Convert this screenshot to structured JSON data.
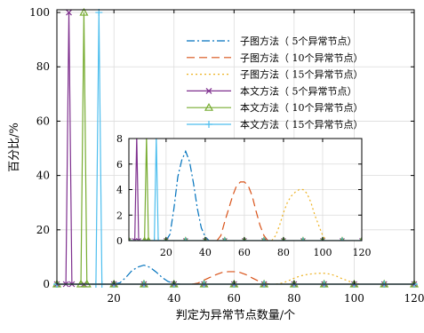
{
  "chart_data": {
    "type": "line",
    "xlabel": "判定为异常节点数量/个",
    "ylabel": "百分比/%",
    "xlim": [
      1,
      120
    ],
    "ylim": [
      0,
      101
    ],
    "xticks": [
      20,
      40,
      60,
      80,
      100,
      120
    ],
    "yticks": [
      0,
      20,
      40,
      60,
      80,
      100
    ],
    "grid": true,
    "legend_position": "top-right",
    "series": [
      {
        "name": "子图方法（  5个异常节点）",
        "color": "#0072BD",
        "dash": "9,3,2,3",
        "marker": "none",
        "points": [
          [
            20,
            0
          ],
          [
            22,
            0.5
          ],
          [
            24,
            2.5
          ],
          [
            26,
            5
          ],
          [
            28,
            6.3
          ],
          [
            30,
            7
          ],
          [
            32,
            6.2
          ],
          [
            34,
            4.5
          ],
          [
            36,
            2.5
          ],
          [
            38,
            1
          ],
          [
            40,
            0.3
          ],
          [
            42,
            0
          ]
        ]
      },
      {
        "name": "子图方法（  10个异常节点）",
        "color": "#D95319",
        "dash": "9,5",
        "marker": "none",
        "points": [
          [
            46,
            0
          ],
          [
            48,
            0.4
          ],
          [
            50,
            1.5
          ],
          [
            52,
            2.5
          ],
          [
            54,
            3.5
          ],
          [
            56,
            4.3
          ],
          [
            58,
            4.6
          ],
          [
            60,
            4.6
          ],
          [
            62,
            4.3
          ],
          [
            64,
            3.5
          ],
          [
            66,
            2.3
          ],
          [
            68,
            1.2
          ],
          [
            70,
            0.4
          ],
          [
            72,
            0
          ]
        ]
      },
      {
        "name": "子图方法（  15个异常节点）",
        "color": "#EDB120",
        "dash": "2,3",
        "marker": "none",
        "points": [
          [
            74,
            0
          ],
          [
            76,
            0.4
          ],
          [
            78,
            1.2
          ],
          [
            80,
            2.2
          ],
          [
            82,
            3
          ],
          [
            84,
            3.5
          ],
          [
            86,
            3.8
          ],
          [
            88,
            4
          ],
          [
            90,
            4
          ],
          [
            92,
            3.7
          ],
          [
            94,
            3
          ],
          [
            96,
            2
          ],
          [
            98,
            1.2
          ],
          [
            100,
            0.4
          ],
          [
            102,
            0
          ]
        ]
      },
      {
        "name": "本文方法（  5个异常节点）",
        "color": "#7E2F8E",
        "dash": "",
        "marker": "x",
        "points": [
          [
            1,
            0
          ],
          [
            4,
            0
          ],
          [
            5,
            100
          ],
          [
            6,
            0
          ],
          [
            10,
            0
          ],
          [
            20,
            0
          ],
          [
            30,
            0
          ],
          [
            40,
            0
          ],
          [
            50,
            0
          ],
          [
            60,
            0
          ],
          [
            70,
            0
          ],
          [
            80,
            0
          ],
          [
            90,
            0
          ],
          [
            100,
            0
          ],
          [
            110,
            0
          ],
          [
            120,
            0
          ]
        ]
      },
      {
        "name": "本文方法（  10个异常节点）",
        "color": "#77AC30",
        "dash": "",
        "marker": "triangle",
        "points": [
          [
            1,
            0
          ],
          [
            9,
            0
          ],
          [
            10,
            100
          ],
          [
            11,
            0
          ],
          [
            20,
            0
          ],
          [
            30,
            0
          ],
          [
            40,
            0
          ],
          [
            50,
            0
          ],
          [
            60,
            0
          ],
          [
            70,
            0
          ],
          [
            80,
            0
          ],
          [
            90,
            0
          ],
          [
            100,
            0
          ],
          [
            110,
            0
          ],
          [
            120,
            0
          ]
        ]
      },
      {
        "name": "本文方法（  15个异常节点）",
        "color": "#4DBEEE",
        "dash": "",
        "marker": "plus",
        "points": [
          [
            1,
            0
          ],
          [
            14,
            0
          ],
          [
            15,
            100
          ],
          [
            16,
            0
          ],
          [
            20,
            0
          ],
          [
            30,
            0
          ],
          [
            40,
            0
          ],
          [
            50,
            0
          ],
          [
            60,
            0
          ],
          [
            70,
            0
          ],
          [
            80,
            0
          ],
          [
            90,
            0
          ],
          [
            100,
            0
          ],
          [
            110,
            0
          ],
          [
            120,
            0
          ]
        ]
      }
    ],
    "inset": {
      "xlim": [
        1,
        120
      ],
      "ylim": [
        0,
        8
      ],
      "xticks": [
        20,
        40,
        60,
        80,
        100,
        120
      ],
      "yticks": [
        0,
        2,
        4,
        6,
        8
      ]
    }
  }
}
